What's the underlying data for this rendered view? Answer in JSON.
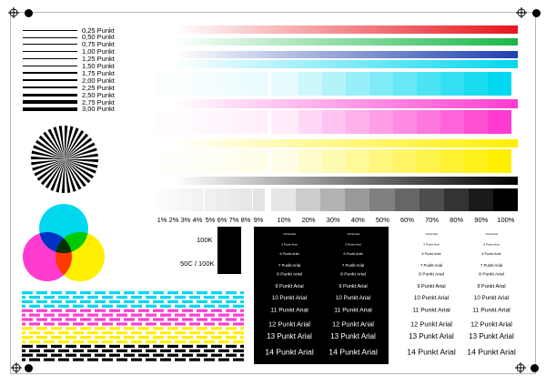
{
  "line_widths": [
    {
      "label": "0,25 Punkt",
      "pt": 0.25
    },
    {
      "label": "0,50 Punkt",
      "pt": 0.5
    },
    {
      "label": "0,75 Punkt",
      "pt": 0.75
    },
    {
      "label": "1,00 Punkt",
      "pt": 1.0
    },
    {
      "label": "1,25 Punkt",
      "pt": 1.25
    },
    {
      "label": "1,50 Punkt",
      "pt": 1.5
    },
    {
      "label": "1,75 Punkt",
      "pt": 1.75
    },
    {
      "label": "2,00 Punkt",
      "pt": 2.0
    },
    {
      "label": "2,25 Punkt",
      "pt": 2.25
    },
    {
      "label": "2,50 Punkt",
      "pt": 2.5
    },
    {
      "label": "2,75 Punkt",
      "pt": 2.75
    },
    {
      "label": "3,00 Punkt",
      "pt": 3.0
    }
  ],
  "gradient_colors": [
    "#e8141c",
    "#19b648",
    "#1e3fb0",
    "#00d8f0",
    "#ff3cd0",
    "#ffef00",
    "#000000"
  ],
  "gray_scale": {
    "left_labels": [
      "1%",
      "2%",
      "3%",
      "4%",
      "5%",
      "6%",
      "7%",
      "8%",
      "9%"
    ],
    "right_labels": [
      "10%",
      "20%",
      "30%",
      "40%",
      "50%",
      "60%",
      "70%",
      "80%",
      "90%",
      "100%"
    ]
  },
  "black_samples": [
    "100K",
    "50C / 100K"
  ],
  "font_sizes": [
    {
      "label": "4 Punkt Arial",
      "pt": 4
    },
    {
      "label": "5 Punkt Arial",
      "pt": 5
    },
    {
      "label": "6 Punkt Arial",
      "pt": 6
    },
    {
      "label": "7 Punkt Arial",
      "pt": 7
    },
    {
      "label": "8 Punkt Arial",
      "pt": 8
    },
    {
      "label": "9 Punkt Arial",
      "pt": 9
    },
    {
      "label": "10 Punkt Arial",
      "pt": 10
    },
    {
      "label": "11 Punkt Arial",
      "pt": 11
    },
    {
      "label": "12 Punkt Arial",
      "pt": 12
    },
    {
      "label": "13 Punkt Arial",
      "pt": 13
    },
    {
      "label": "14 Punkt Arial",
      "pt": 14
    }
  ],
  "stripe_colors": [
    "#00d8f0",
    "#ff3cd0",
    "#ffef00",
    "#000000"
  ],
  "circle_colors": {
    "cyan": "#00d8f0",
    "magenta": "#ff3cd0",
    "yellow": "#ffef00"
  }
}
